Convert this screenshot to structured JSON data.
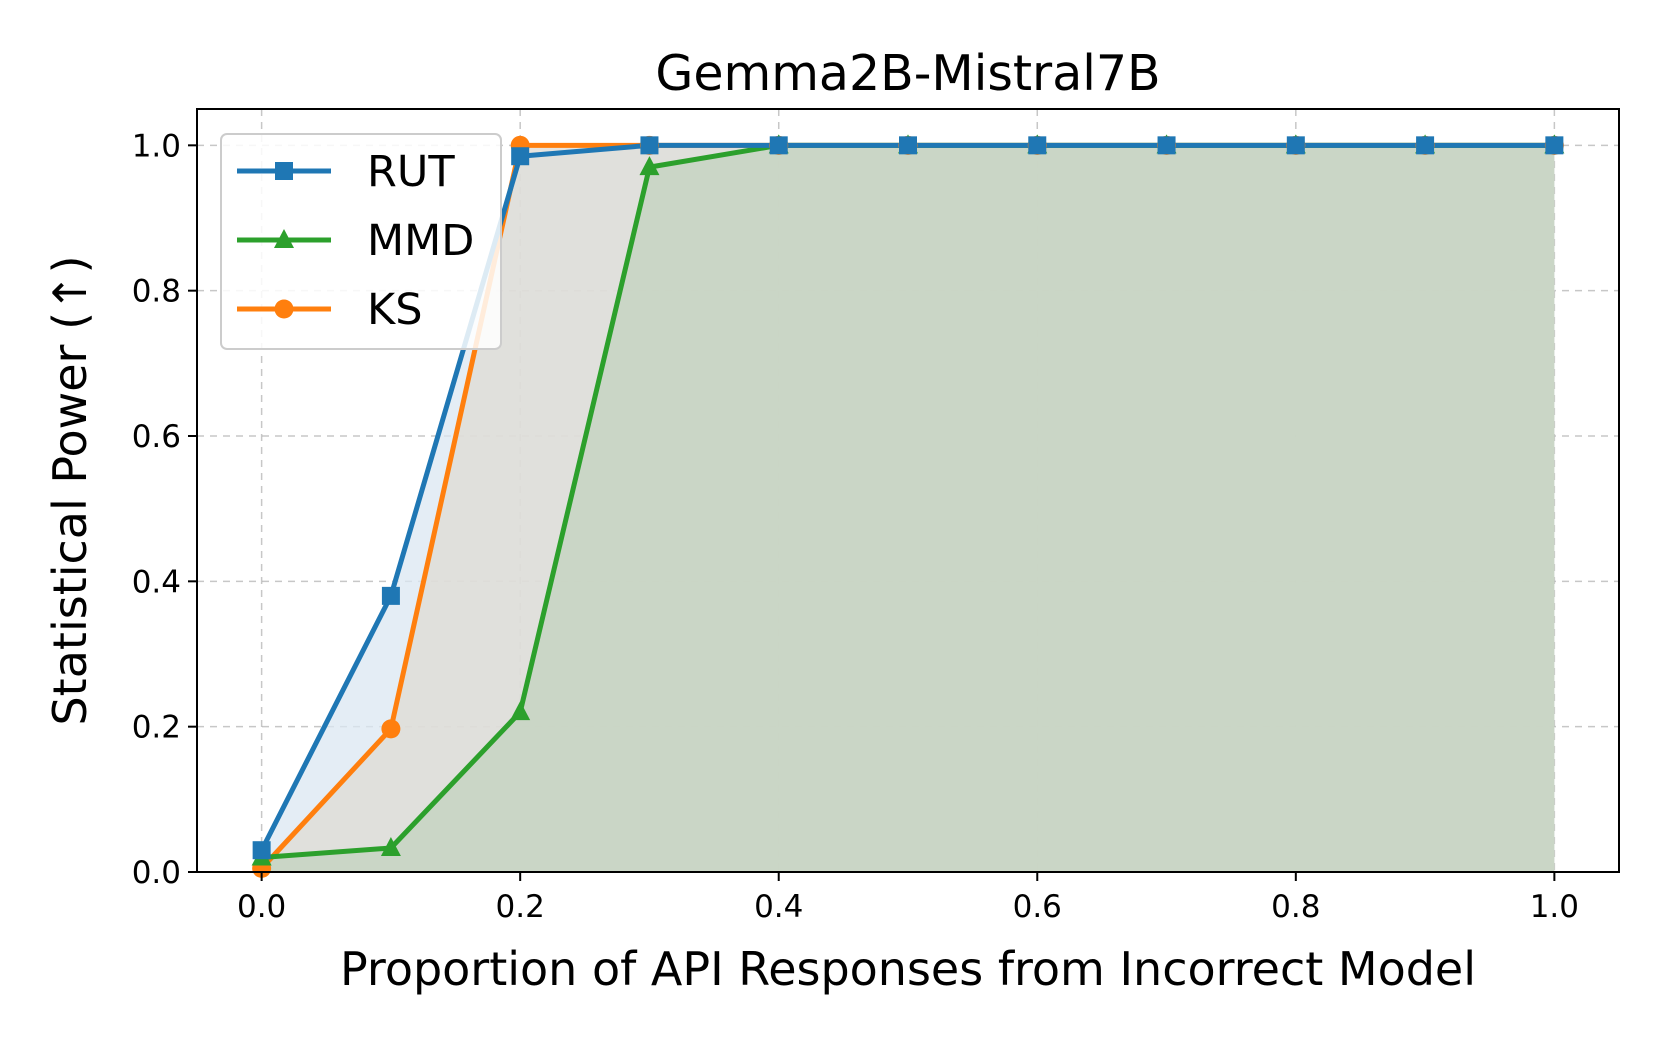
{
  "chart_data": {
    "type": "line",
    "title": "Gemma2B-Mistral7B",
    "xlabel": "Proportion of API Responses from Incorrect Model",
    "ylabel": "Statistical Power (↑)",
    "xlim": [
      -0.05,
      1.05
    ],
    "ylim": [
      0.0,
      1.05
    ],
    "xticks": [
      "0.0",
      "0.2",
      "0.4",
      "0.6",
      "0.8",
      "1.0"
    ],
    "yticks": [
      "0.0",
      "0.2",
      "0.4",
      "0.6",
      "0.8",
      "1.0"
    ],
    "grid": true,
    "legend_position": "top-left",
    "fill_under_series": true,
    "x": [
      0.0,
      0.1,
      0.2,
      0.3,
      0.4,
      0.5,
      0.6,
      0.7,
      0.8,
      0.9,
      1.0
    ],
    "series": [
      {
        "name": "RUT",
        "color": "#1f77b4",
        "fill": "#dbe7f2",
        "marker": "square",
        "values": [
          0.03,
          0.38,
          0.985,
          1.0,
          1.0,
          1.0,
          1.0,
          1.0,
          1.0,
          1.0,
          1.0
        ]
      },
      {
        "name": "MMD",
        "color": "#2ca02c",
        "fill": "#c3d3bf",
        "marker": "triangle",
        "values": [
          0.02,
          0.033,
          0.22,
          0.97,
          1.0,
          1.0,
          1.0,
          1.0,
          1.0,
          1.0,
          1.0
        ]
      },
      {
        "name": "KS",
        "color": "#ff7f0e",
        "fill": "#dfdbd3",
        "marker": "circle",
        "values": [
          0.005,
          0.197,
          1.0,
          1.0,
          1.0,
          1.0,
          1.0,
          1.0,
          1.0,
          1.0,
          1.0
        ]
      }
    ]
  }
}
